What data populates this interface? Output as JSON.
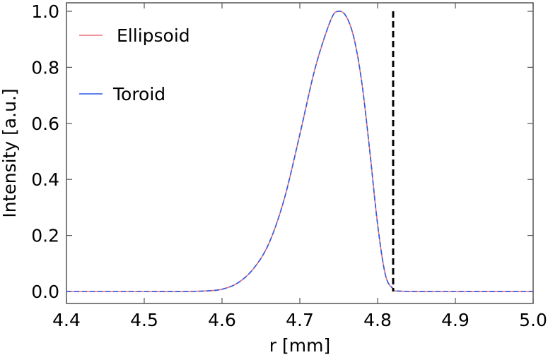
{
  "chart_data": {
    "type": "line",
    "title": "",
    "xlabel": "r [mm]",
    "ylabel": "Intensity [a.u.]",
    "xlim": [
      4.4,
      5.0
    ],
    "ylim": [
      0.0,
      1.0
    ],
    "xticks": [
      "4.4",
      "4.5",
      "4.6",
      "4.7",
      "4.8",
      "4.9",
      "5.0"
    ],
    "yticks": [
      "0.0",
      "0.2",
      "0.4",
      "0.6",
      "0.8",
      "1.0"
    ],
    "grid": false,
    "legend_position": "top-left",
    "series": [
      {
        "name": "Ellipsoid",
        "color": "#e8707a",
        "style": "solid",
        "x": [
          4.4,
          4.45,
          4.5,
          4.55,
          4.58,
          4.6,
          4.62,
          4.64,
          4.66,
          4.68,
          4.7,
          4.72,
          4.74,
          4.75,
          4.76,
          4.77,
          4.78,
          4.79,
          4.8,
          4.81,
          4.82,
          4.83,
          4.9,
          5.0
        ],
        "y": [
          0.0,
          0.0,
          0.0,
          0.0,
          0.002,
          0.008,
          0.03,
          0.08,
          0.17,
          0.33,
          0.56,
          0.8,
          0.97,
          1.0,
          0.98,
          0.9,
          0.74,
          0.5,
          0.24,
          0.06,
          0.01,
          0.001,
          0.0,
          0.0
        ]
      },
      {
        "name": "Toroid",
        "color": "#2a59e6",
        "style": "dashed",
        "x": [
          4.4,
          4.45,
          4.5,
          4.55,
          4.58,
          4.6,
          4.62,
          4.64,
          4.66,
          4.68,
          4.7,
          4.72,
          4.74,
          4.75,
          4.76,
          4.77,
          4.78,
          4.79,
          4.8,
          4.81,
          4.82,
          4.83,
          4.9,
          5.0
        ],
        "y": [
          0.0,
          0.0,
          0.0,
          0.0,
          0.002,
          0.008,
          0.03,
          0.08,
          0.17,
          0.33,
          0.56,
          0.8,
          0.97,
          1.0,
          0.98,
          0.9,
          0.74,
          0.5,
          0.24,
          0.06,
          0.01,
          0.001,
          0.0,
          0.0
        ]
      }
    ],
    "vertical_line": {
      "x": 4.82,
      "color": "#000000",
      "style": "dashed"
    }
  }
}
